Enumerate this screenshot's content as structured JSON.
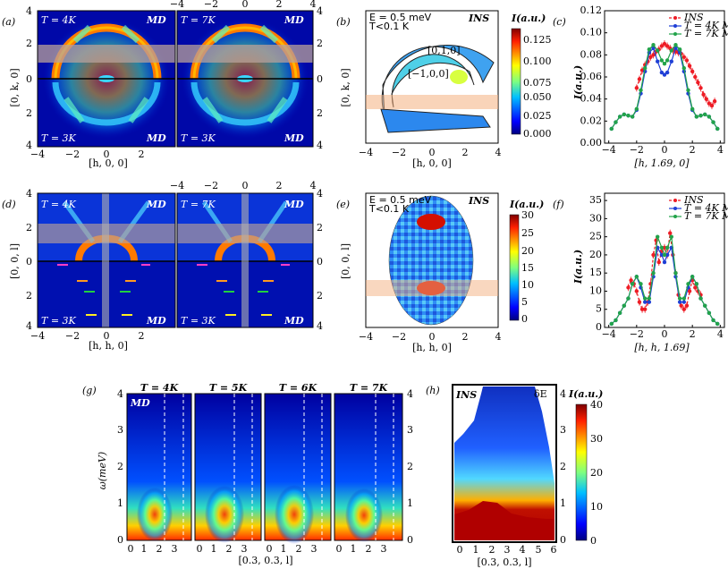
{
  "panel_labels": {
    "a": "(a)",
    "b": "(b)",
    "c": "(c)",
    "d": "(d)",
    "e": "(e)",
    "f": "(f)",
    "g": "(g)",
    "h": "(h)"
  },
  "common": {
    "md": "MD",
    "ins": "INS",
    "energy": "E = 0.5 meV",
    "temp": "T<0.1 K",
    "cbar_title": "I(a.u.)",
    "dE": "δE"
  },
  "panel_a": {
    "t_top_left": "T = 4K",
    "t_top_right": "T = 7K",
    "t_bottom": "T = 3K",
    "ylabel": "[0, k, 0]",
    "xlabel": "[h, 0, 0]",
    "ticks": [
      "−4",
      "−2",
      "0",
      "2",
      "4"
    ],
    "yticks": [
      "4",
      "2",
      "0",
      "2",
      "4"
    ]
  },
  "panel_b": {
    "ylabel": "[0, k, 0]",
    "xlabel": "[h, 0, 0]",
    "ticks": [
      "−4",
      "−2",
      "0",
      "2",
      "4"
    ],
    "cbar_ticks": [
      "0.125",
      "0.100",
      "0.075",
      "0.050",
      "0.025",
      "0.000"
    ],
    "ann_010": "[0,1,0]",
    "ann_100": "[−1,0,0]"
  },
  "panel_d": {
    "t_top_left": "T = 4K",
    "t_top_right": "T = 7K",
    "t_bottom": "T = 3K",
    "ylabel": "[0, 0, l]",
    "xlabel": "[h, h, 0]",
    "ticks": [
      "−4",
      "−2",
      "0",
      "2",
      "4"
    ],
    "yticks": [
      "4",
      "2",
      "0",
      "2",
      "4"
    ]
  },
  "panel_e": {
    "ylabel": "[0, 0, l]",
    "xlabel": "[h, h, 0]",
    "ticks": [
      "−4",
      "−2",
      "0",
      "2",
      "4"
    ],
    "cbar_ticks": [
      "30",
      "25",
      "20",
      "15",
      "10",
      "5",
      "0"
    ]
  },
  "panel_g": {
    "titles": [
      "T = 4K",
      "T = 5K",
      "T = 6K",
      "T = 7K"
    ],
    "ylabel": "ω(meV)",
    "xlabel": "[0.3, 0.3, l]",
    "yticks": [
      "4",
      "3",
      "2",
      "1",
      "0"
    ],
    "xticks": [
      "0",
      "1",
      "2",
      "3"
    ]
  },
  "panel_h": {
    "xlabel": "[0.3, 0.3, l]",
    "xticks": [
      "0",
      "1",
      "2",
      "3",
      "4",
      "5",
      "6"
    ],
    "yticks": [
      "4",
      "3",
      "2",
      "1",
      "0"
    ],
    "cbar_ticks": [
      "40",
      "30",
      "20",
      "10",
      "0"
    ]
  },
  "chart_data": [
    {
      "id": "c",
      "type": "line",
      "xlabel": "[h, 1.69, 0]",
      "ylabel": "I(a.u.)",
      "xlim": [
        -4.3,
        4.3
      ],
      "ylim": [
        0,
        0.12
      ],
      "xticks": [
        -4,
        -2,
        0,
        2,
        4
      ],
      "yticks": [
        0,
        0.02,
        0.04,
        0.06,
        0.08,
        0.1,
        0.12
      ],
      "legend_position": "top-right",
      "series": [
        {
          "name": "INS",
          "color": "#ee1c25",
          "x": [
            -2.0,
            -1.8,
            -1.6,
            -1.4,
            -1.2,
            -1.0,
            -0.8,
            -0.6,
            -0.4,
            -0.2,
            0.0,
            0.2,
            0.4,
            0.6,
            0.8,
            1.0,
            1.2,
            1.4,
            1.6,
            1.8,
            2.0,
            2.2,
            2.4,
            2.6,
            2.8,
            3.0,
            3.2,
            3.4,
            3.6
          ],
          "y": [
            0.05,
            0.058,
            0.066,
            0.071,
            0.074,
            0.078,
            0.08,
            0.083,
            0.085,
            0.088,
            0.09,
            0.088,
            0.086,
            0.084,
            0.083,
            0.082,
            0.081,
            0.078,
            0.075,
            0.07,
            0.065,
            0.06,
            0.055,
            0.05,
            0.044,
            0.04,
            0.036,
            0.034,
            0.038
          ]
        },
        {
          "name": "T = 4K MD",
          "color": "#1f3fd6",
          "x": [
            -3.8,
            -3.5,
            -3.2,
            -2.9,
            -2.6,
            -2.3,
            -2.0,
            -1.7,
            -1.4,
            -1.1,
            -0.8,
            -0.5,
            -0.2,
            0.0,
            0.2,
            0.5,
            0.8,
            1.1,
            1.4,
            1.7,
            2.0,
            2.3,
            2.6,
            2.9,
            3.2,
            3.5,
            3.8
          ],
          "y": [
            0.013,
            0.019,
            0.024,
            0.026,
            0.025,
            0.024,
            0.03,
            0.045,
            0.065,
            0.082,
            0.086,
            0.074,
            0.064,
            0.062,
            0.064,
            0.074,
            0.086,
            0.082,
            0.065,
            0.045,
            0.03,
            0.024,
            0.025,
            0.026,
            0.024,
            0.019,
            0.013
          ]
        },
        {
          "name": "T = 7K MD",
          "color": "#22a34a",
          "x": [
            -3.8,
            -3.5,
            -3.2,
            -2.9,
            -2.6,
            -2.3,
            -2.0,
            -1.7,
            -1.4,
            -1.1,
            -0.8,
            -0.5,
            -0.2,
            0.0,
            0.2,
            0.5,
            0.8,
            1.1,
            1.4,
            1.7,
            2.0,
            2.3,
            2.6,
            2.9,
            3.2,
            3.5,
            3.8
          ],
          "y": [
            0.013,
            0.019,
            0.024,
            0.026,
            0.025,
            0.024,
            0.031,
            0.048,
            0.068,
            0.085,
            0.089,
            0.084,
            0.075,
            0.072,
            0.075,
            0.084,
            0.089,
            0.085,
            0.068,
            0.048,
            0.031,
            0.024,
            0.025,
            0.026,
            0.024,
            0.019,
            0.013
          ]
        }
      ]
    },
    {
      "id": "f",
      "type": "line",
      "xlabel": "[h, h, 1.69]",
      "ylabel": "I(a.u.)",
      "xlim": [
        -4.3,
        4.3
      ],
      "ylim": [
        0,
        37
      ],
      "xticks": [
        -4,
        -2,
        0,
        2,
        4
      ],
      "yticks": [
        0,
        5,
        10,
        15,
        20,
        25,
        30,
        35
      ],
      "legend_position": "top-right",
      "series": [
        {
          "name": "INS",
          "color": "#ee1c25",
          "x": [
            -2.6,
            -2.4,
            -2.2,
            -2.0,
            -1.8,
            -1.6,
            -1.4,
            -1.2,
            -1.0,
            -0.8,
            -0.6,
            -0.4,
            -0.2,
            0.0,
            0.2,
            0.4,
            0.6,
            0.8,
            1.0,
            1.2,
            1.4,
            1.6,
            1.8,
            2.0,
            2.2,
            2.4,
            2.6
          ],
          "y": [
            11,
            13,
            12,
            10,
            7,
            5,
            5,
            7,
            12,
            20,
            24,
            18,
            21,
            22,
            20,
            26,
            20,
            15,
            9,
            6,
            5,
            6,
            10,
            13,
            11,
            10,
            9
          ]
        },
        {
          "name": "T = 4K MD",
          "color": "#1f3fd6",
          "x": [
            -3.8,
            -3.5,
            -3.2,
            -2.9,
            -2.6,
            -2.3,
            -2.0,
            -1.7,
            -1.4,
            -1.1,
            -0.8,
            -0.5,
            -0.2,
            0.0,
            0.2,
            0.5,
            0.8,
            1.1,
            1.4,
            1.7,
            2.0,
            2.3,
            2.6,
            2.9,
            3.2,
            3.5,
            3.8
          ],
          "y": [
            1,
            2,
            4,
            6,
            8,
            12,
            14,
            11,
            7,
            7,
            14,
            22,
            20,
            18,
            20,
            22,
            14,
            7,
            7,
            11,
            14,
            12,
            8,
            6,
            4,
            2,
            1
          ]
        },
        {
          "name": "T = 7K MD",
          "color": "#22a34a",
          "x": [
            -3.8,
            -3.5,
            -3.2,
            -2.9,
            -2.6,
            -2.3,
            -2.0,
            -1.7,
            -1.4,
            -1.1,
            -0.8,
            -0.5,
            -0.2,
            0.0,
            0.2,
            0.5,
            0.8,
            1.1,
            1.4,
            1.7,
            2.0,
            2.3,
            2.6,
            2.9,
            3.2,
            3.5,
            3.8
          ],
          "y": [
            1,
            2,
            4,
            6,
            8,
            12,
            14,
            12,
            8,
            8,
            15,
            25,
            22,
            20,
            22,
            25,
            15,
            8,
            8,
            12,
            14,
            12,
            8,
            6,
            4,
            2,
            1
          ]
        }
      ]
    }
  ]
}
